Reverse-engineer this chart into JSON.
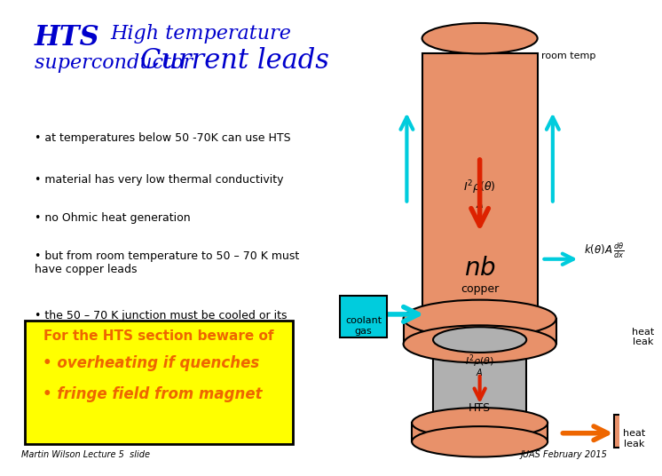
{
  "title_hts": "HTS ",
  "title_rest": "High temperature\nsuperconductor  Current leads",
  "bullet1": "at temperatures below 50 -70K can use HTS",
  "bullet2": "material has very low thermal conductivity",
  "bullet3": "no Ohmic heat generation",
  "bullet4": "but from room temperature to 50 – 70 K must\nhave copper leads",
  "bullet5": "the 50 – 70 K junction must be cooled or its\ntemperature will drift up and quench the HTS",
  "box_title": "For the HTS section beware of",
  "box_bullet1": "• overheating if quenches",
  "box_bullet2": "• fringe field from magnet",
  "label_room_temp": "room temp",
  "label_copper": "copper",
  "label_hts": "HTS",
  "label_coolant": "coolant\ngas",
  "label_heat_leak1": "heat\nleak",
  "label_heat_leak2": "heat\nleak",
  "bg_color": "#ffffff",
  "copper_color": "#E8916A",
  "hts_color": "#B0B0B0",
  "cyan_arrow_color": "#00CCDD",
  "red_arrow_color": "#DD2200",
  "orange_arrow_color": "#EE6600",
  "yellow_box_color": "#FFFF00",
  "heat_leak_box_color": "#E8916A",
  "coolant_box_color": "#00CCDD",
  "text_blue": "#0000CC",
  "text_orange": "#FF6600",
  "footer_left": "Martin Wilson Lecture 5  slide",
  "footer_right": "JUAS February 2015"
}
